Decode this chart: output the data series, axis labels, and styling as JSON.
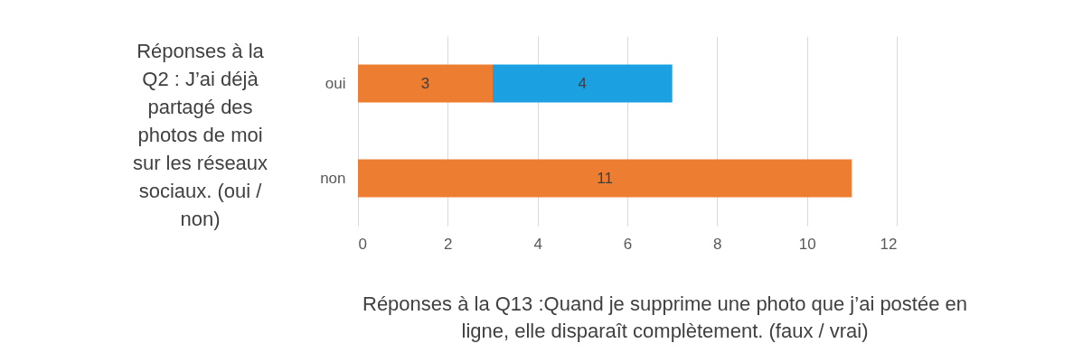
{
  "chart_data": {
    "type": "bar",
    "orientation": "horizontal",
    "stacked": true,
    "categories": [
      "oui",
      "non"
    ],
    "series": [
      {
        "color": "#ed7d31",
        "values": [
          3,
          11
        ]
      },
      {
        "color": "#1ba1e2",
        "values": [
          4,
          null
        ]
      }
    ],
    "xlim": [
      0,
      12
    ],
    "xticks": [
      0,
      2,
      4,
      6,
      8,
      10,
      12
    ],
    "grid": "x",
    "data_labels": true,
    "ylabel": "Réponses à la Q2 : J’ai déjà partagé des photos de moi sur les réseaux sociaux. (oui / non)",
    "xlabel": "Réponses à la Q13 :Quand je supprime une photo que j’ai postée en ligne, elle disparaît complètement. (faux / vrai)"
  }
}
